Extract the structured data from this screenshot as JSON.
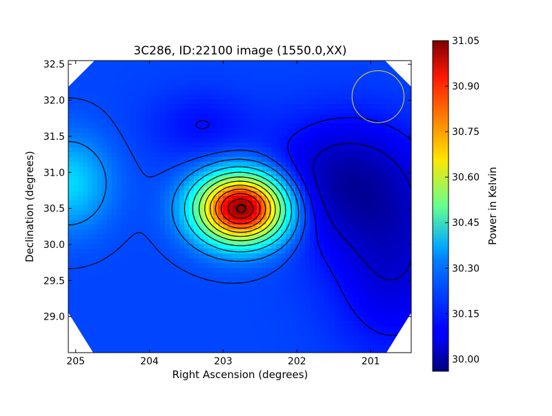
{
  "chart_data": {
    "type": "heatmap",
    "title": "3C286, ID:22100 image (1550.0,XX)",
    "xlabel": "Right Ascension (degrees)",
    "ylabel": "Declination (degrees)",
    "xlim": [
      205.1,
      200.45
    ],
    "ylim": [
      28.5,
      32.55
    ],
    "x_ticks": [
      205,
      204,
      203,
      202,
      201
    ],
    "x_tick_labels": [
      "205",
      "204",
      "203",
      "202",
      "201"
    ],
    "y_ticks": [
      29.0,
      29.5,
      30.0,
      30.5,
      31.0,
      31.5,
      32.0,
      32.5
    ],
    "y_tick_labels": [
      "29.0",
      "29.5",
      "30.0",
      "30.5",
      "31.0",
      "31.5",
      "32.0",
      "32.5"
    ],
    "colorbar": {
      "label": "Power in Kelvin",
      "range": [
        29.96,
        31.05
      ],
      "ticks": [
        30.0,
        30.15,
        30.3,
        30.45,
        30.6,
        30.75,
        30.9,
        31.05
      ],
      "tick_labels": [
        "30.00",
        "30.15",
        "30.30",
        "30.45",
        "30.60",
        "30.75",
        "30.90",
        "31.05"
      ],
      "colormap": "jet"
    },
    "background_level": 30.17,
    "peak": {
      "ra": 202.75,
      "dec": 30.5,
      "value": 31.05
    },
    "features": [
      {
        "kind": "peak",
        "ra": 202.75,
        "dec": 30.5,
        "value": 31.05,
        "sigma_ra": 0.42,
        "sigma_dec": 0.33
      },
      {
        "kind": "high",
        "ra": 205.1,
        "dec": 30.85,
        "value": 30.33,
        "sigma_ra": 0.4,
        "sigma_dec": 0.45
      },
      {
        "kind": "low",
        "ra": 201.4,
        "dec": 30.9,
        "value": 30.02,
        "sigma_ra": 0.7,
        "sigma_dec": 0.6
      },
      {
        "kind": "low",
        "ra": 200.7,
        "dec": 29.8,
        "value": 30.05,
        "sigma_ra": 0.6,
        "sigma_dec": 0.9
      },
      {
        "kind": "low",
        "ra": 203.3,
        "dec": 31.65,
        "value": 30.11,
        "sigma_ra": 0.5,
        "sigma_dec": 0.35
      }
    ],
    "beam_circle": {
      "ra": 200.9,
      "dec": 32.05,
      "radius_deg": 0.36,
      "color": "#c8c832"
    },
    "contour_color": "#000000",
    "contour_levels_around_peak": [
      30.24,
      30.33,
      30.42,
      30.51,
      30.6,
      30.69,
      30.78,
      30.87,
      30.96,
      31.02
    ],
    "grid": false
  }
}
